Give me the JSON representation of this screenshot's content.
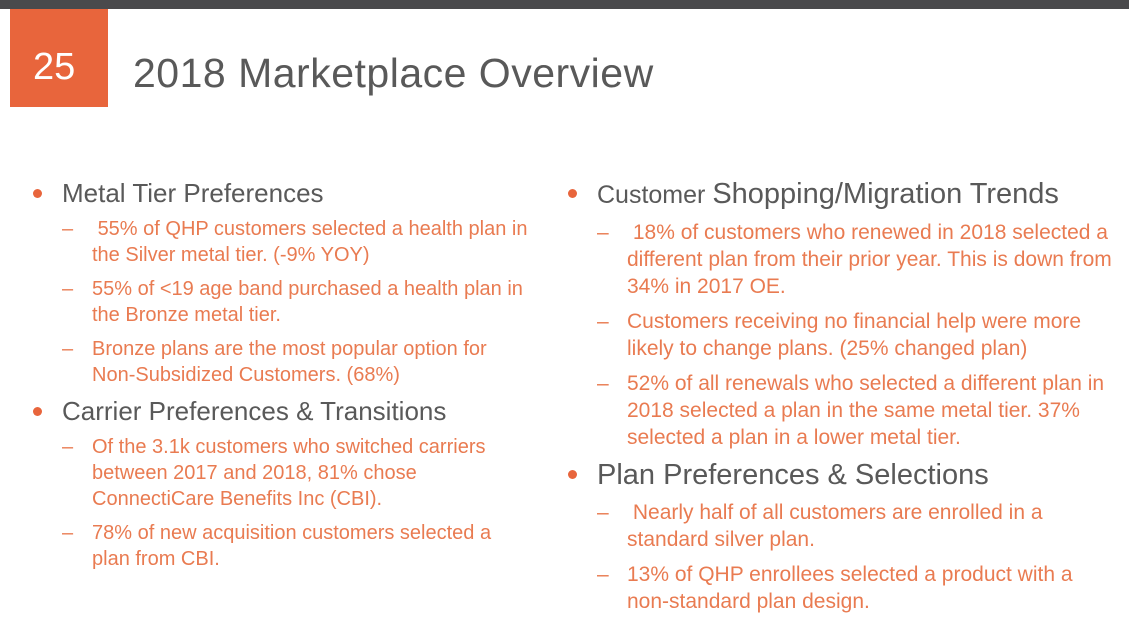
{
  "colors": {
    "top_bar": "#4a4a4c",
    "accent_orange": "#e8653c",
    "heading_gray": "#595959",
    "body_orange": "#e97b51",
    "background": "#ffffff"
  },
  "header": {
    "page_number": "25",
    "title": "2018 Marketplace Overview"
  },
  "markers": {
    "dash": "–"
  },
  "columns": [
    {
      "blocks": [
        {
          "heading": "Metal Tier Preferences",
          "items": [
            " 55% of QHP customers selected a health plan in the Silver metal tier. (-9% YOY)",
            "55% of <19 age band purchased a health plan in the Bronze metal tier.",
            "Bronze plans are the most popular option for Non-Subsidized Customers. (68%)"
          ]
        },
        {
          "heading": "Carrier Preferences & Transitions",
          "items": [
            "Of the 3.1k customers who switched carriers between 2017 and 2018, 81% chose ConnectiCare Benefits Inc (CBI).",
            "78% of new acquisition customers selected a plan from CBI."
          ]
        }
      ]
    },
    {
      "blocks": [
        {
          "heading_part1": "Customer ",
          "heading_part2": "Shopping/Migration Trends",
          "items": [
            " 18% of customers who renewed in 2018 selected a different plan from their prior year. This is down from 34% in 2017 OE.",
            "Customers receiving no financial help were more likely to change plans. (25% changed plan)",
            "52% of all renewals who selected a different plan in 2018 selected a plan in the same metal tier. 37% selected a plan in a lower metal tier."
          ]
        },
        {
          "heading": "Plan Preferences & Selections",
          "items": [
            " Nearly half of all customers are enrolled in a standard silver plan.",
            "13% of QHP enrollees selected a product with a non-standard plan design."
          ]
        }
      ]
    }
  ]
}
